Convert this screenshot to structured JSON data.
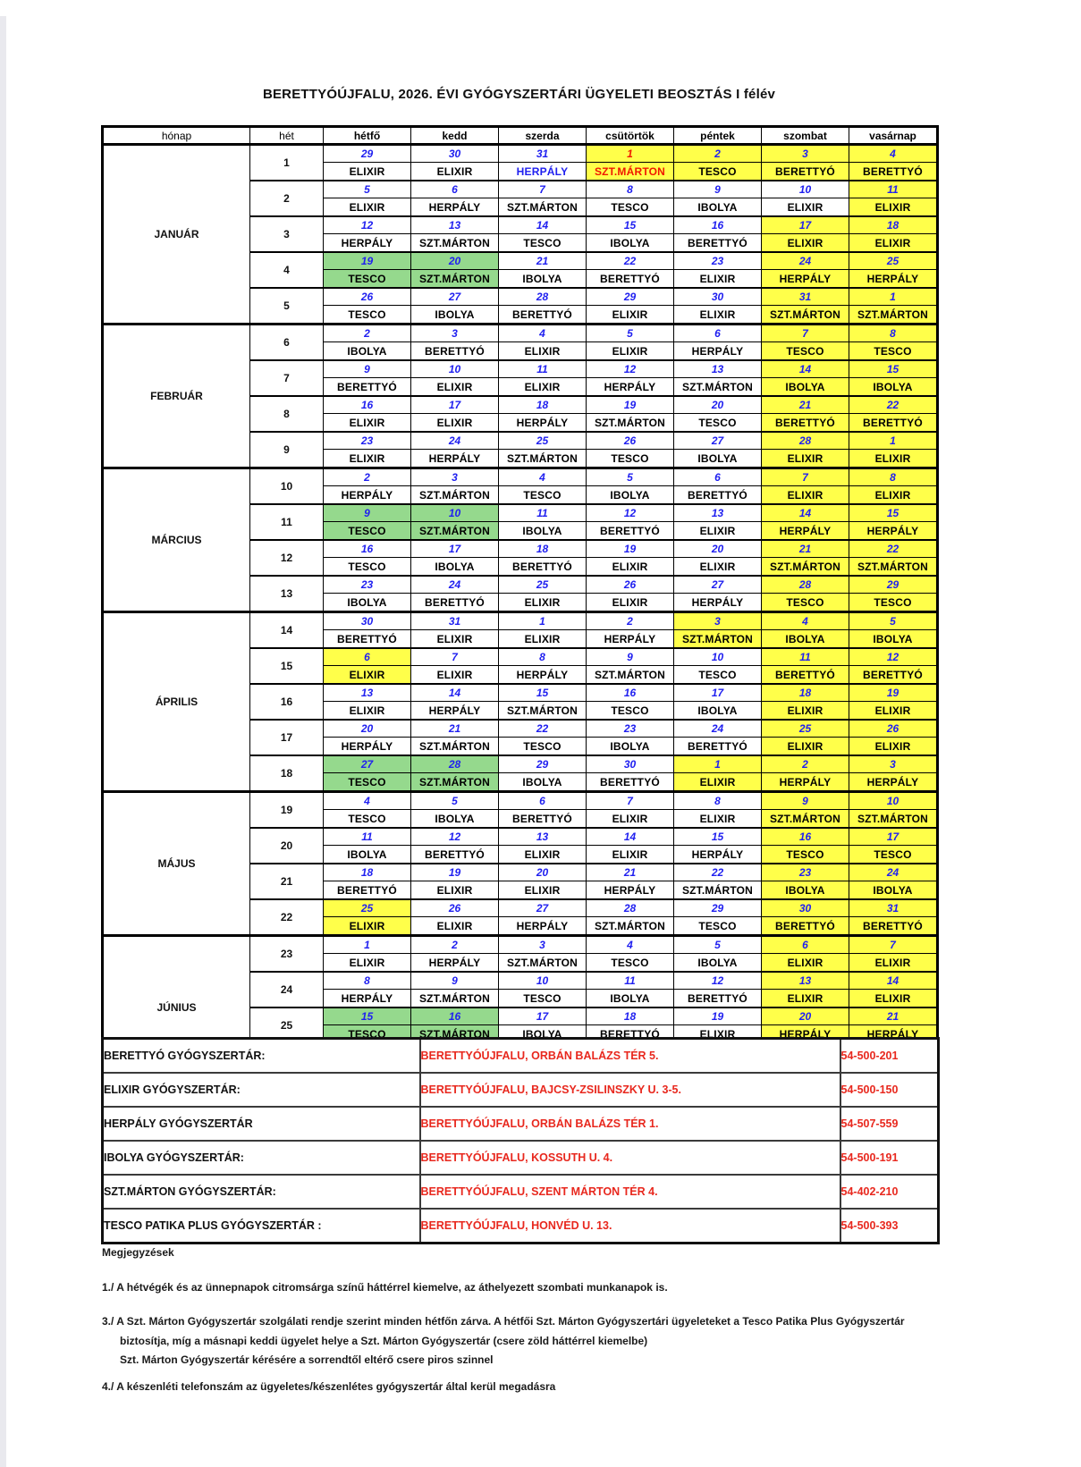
{
  "title": "BERETTYÓÚJFALU, 2026. ÉVI GYÓGYSZERTÁRI ÜGYELETI BEOSZTÁS I félév",
  "colors": {
    "weekend_holiday_bg": "#ffff4a",
    "swap_bg": "#95d98d",
    "date_text": "#2020f0",
    "swap_text_red": "#f01800",
    "address_text": "#e8281e"
  },
  "table": {
    "headers": [
      "hónap",
      "hét",
      "hétfő",
      "kedd",
      "szerda",
      "csütörtök",
      "péntek",
      "szombat",
      "vasárnap"
    ],
    "months": [
      {
        "name": "JANUÁR",
        "weeks": [
          {
            "n": "1",
            "d": [
              "29",
              "30",
              "31",
              "1",
              "2",
              "3",
              "4"
            ],
            "p": [
              "ELIXIR",
              "ELIXIR",
              "HERPÁLY",
              "SZT.MÁRTON",
              "TESCO",
              "BERETTYÓ",
              "BERETTYÓ"
            ],
            "bg": [
              "n",
              "n",
              "n",
              "y",
              "y",
              "y",
              "y"
            ],
            "dc": [
              "",
              "",
              "",
              "r",
              "",
              "",
              ""
            ],
            "pc": [
              "",
              "",
              "b",
              "r",
              "",
              "",
              ""
            ]
          },
          {
            "n": "2",
            "d": [
              "5",
              "6",
              "7",
              "8",
              "9",
              "10",
              "11"
            ],
            "p": [
              "ELIXIR",
              "HERPÁLY",
              "SZT.MÁRTON",
              "TESCO",
              "IBOLYA",
              "ELIXIR",
              "ELIXIR"
            ],
            "bg": [
              "n",
              "n",
              "n",
              "n",
              "n",
              "n",
              "y"
            ]
          },
          {
            "n": "3",
            "d": [
              "12",
              "13",
              "14",
              "15",
              "16",
              "17",
              "18"
            ],
            "p": [
              "HERPÁLY",
              "SZT.MÁRTON",
              "TESCO",
              "IBOLYA",
              "BERETTYÓ",
              "ELIXIR",
              "ELIXIR"
            ],
            "bg": [
              "n",
              "n",
              "n",
              "n",
              "n",
              "y",
              "y"
            ]
          },
          {
            "n": "4",
            "d": [
              "19",
              "20",
              "21",
              "22",
              "23",
              "24",
              "25"
            ],
            "p": [
              "TESCO",
              "SZT.MÁRTON",
              "IBOLYA",
              "BERETTYÓ",
              "ELIXIR",
              "HERPÁLY",
              "HERPÁLY"
            ],
            "bg": [
              "g",
              "g",
              "n",
              "n",
              "n",
              "y",
              "y"
            ]
          },
          {
            "n": "5",
            "d": [
              "26",
              "27",
              "28",
              "29",
              "30",
              "31",
              "1"
            ],
            "p": [
              "TESCO",
              "IBOLYA",
              "BERETTYÓ",
              "ELIXIR",
              "ELIXIR",
              "SZT.MÁRTON",
              "SZT.MÁRTON"
            ],
            "bg": [
              "n",
              "n",
              "n",
              "n",
              "n",
              "y",
              "y"
            ]
          }
        ]
      },
      {
        "name": "FEBRUÁR",
        "weeks": [
          {
            "n": "6",
            "d": [
              "2",
              "3",
              "4",
              "5",
              "6",
              "7",
              "8"
            ],
            "p": [
              "IBOLYA",
              "BERETTYÓ",
              "ELIXIR",
              "ELIXIR",
              "HERPÁLY",
              "TESCO",
              "TESCO"
            ],
            "bg": [
              "n",
              "n",
              "n",
              "n",
              "n",
              "y",
              "y"
            ]
          },
          {
            "n": "7",
            "d": [
              "9",
              "10",
              "11",
              "12",
              "13",
              "14",
              "15"
            ],
            "p": [
              "BERETTYÓ",
              "ELIXIR",
              "ELIXIR",
              "HERPÁLY",
              "SZT.MÁRTON",
              "IBOLYA",
              "IBOLYA"
            ],
            "bg": [
              "n",
              "n",
              "n",
              "n",
              "n",
              "y",
              "y"
            ]
          },
          {
            "n": "8",
            "d": [
              "16",
              "17",
              "18",
              "19",
              "20",
              "21",
              "22"
            ],
            "p": [
              "ELIXIR",
              "ELIXIR",
              "HERPÁLY",
              "SZT.MÁRTON",
              "TESCO",
              "BERETTYÓ",
              "BERETTYÓ"
            ],
            "bg": [
              "n",
              "n",
              "n",
              "n",
              "n",
              "y",
              "y"
            ]
          },
          {
            "n": "9",
            "d": [
              "23",
              "24",
              "25",
              "26",
              "27",
              "28",
              "1"
            ],
            "p": [
              "ELIXIR",
              "HERPÁLY",
              "SZT.MÁRTON",
              "TESCO",
              "IBOLYA",
              "ELIXIR",
              "ELIXIR"
            ],
            "bg": [
              "n",
              "n",
              "n",
              "n",
              "n",
              "y",
              "y"
            ]
          }
        ]
      },
      {
        "name": "MÁRCIUS",
        "weeks": [
          {
            "n": "10",
            "d": [
              "2",
              "3",
              "4",
              "5",
              "6",
              "7",
              "8"
            ],
            "p": [
              "HERPÁLY",
              "SZT.MÁRTON",
              "TESCO",
              "IBOLYA",
              "BERETTYÓ",
              "ELIXIR",
              "ELIXIR"
            ],
            "bg": [
              "n",
              "n",
              "n",
              "n",
              "n",
              "y",
              "y"
            ]
          },
          {
            "n": "11",
            "d": [
              "9",
              "10",
              "11",
              "12",
              "13",
              "14",
              "15"
            ],
            "p": [
              "TESCO",
              "SZT.MÁRTON",
              "IBOLYA",
              "BERETTYÓ",
              "ELIXIR",
              "HERPÁLY",
              "HERPÁLY"
            ],
            "bg": [
              "g",
              "g",
              "n",
              "n",
              "n",
              "y",
              "y"
            ]
          },
          {
            "n": "12",
            "d": [
              "16",
              "17",
              "18",
              "19",
              "20",
              "21",
              "22"
            ],
            "p": [
              "TESCO",
              "IBOLYA",
              "BERETTYÓ",
              "ELIXIR",
              "ELIXIR",
              "SZT.MÁRTON",
              "SZT.MÁRTON"
            ],
            "bg": [
              "n",
              "n",
              "n",
              "n",
              "n",
              "y",
              "y"
            ]
          },
          {
            "n": "13",
            "d": [
              "23",
              "24",
              "25",
              "26",
              "27",
              "28",
              "29"
            ],
            "p": [
              "IBOLYA",
              "BERETTYÓ",
              "ELIXIR",
              "ELIXIR",
              "HERPÁLY",
              "TESCO",
              "TESCO"
            ],
            "bg": [
              "n",
              "n",
              "n",
              "n",
              "n",
              "y",
              "y"
            ]
          }
        ]
      },
      {
        "name": "ÁPRILIS",
        "weeks": [
          {
            "n": "14",
            "d": [
              "30",
              "31",
              "1",
              "2",
              "3",
              "4",
              "5"
            ],
            "p": [
              "BERETTYÓ",
              "ELIXIR",
              "ELIXIR",
              "HERPÁLY",
              "SZT.MÁRTON",
              "IBOLYA",
              "IBOLYA"
            ],
            "bg": [
              "n",
              "n",
              "n",
              "n",
              "y",
              "y",
              "y"
            ]
          },
          {
            "n": "15",
            "d": [
              "6",
              "7",
              "8",
              "9",
              "10",
              "11",
              "12"
            ],
            "p": [
              "ELIXIR",
              "ELIXIR",
              "HERPÁLY",
              "SZT.MÁRTON",
              "TESCO",
              "BERETTYÓ",
              "BERETTYÓ"
            ],
            "bg": [
              "y",
              "n",
              "n",
              "n",
              "n",
              "y",
              "y"
            ]
          },
          {
            "n": "16",
            "d": [
              "13",
              "14",
              "15",
              "16",
              "17",
              "18",
              "19"
            ],
            "p": [
              "ELIXIR",
              "HERPÁLY",
              "SZT.MÁRTON",
              "TESCO",
              "IBOLYA",
              "ELIXIR",
              "ELIXIR"
            ],
            "bg": [
              "n",
              "n",
              "n",
              "n",
              "n",
              "y",
              "y"
            ]
          },
          {
            "n": "17",
            "d": [
              "20",
              "21",
              "22",
              "23",
              "24",
              "25",
              "26"
            ],
            "p": [
              "HERPÁLY",
              "SZT.MÁRTON",
              "TESCO",
              "IBOLYA",
              "BERETTYÓ",
              "ELIXIR",
              "ELIXIR"
            ],
            "bg": [
              "n",
              "n",
              "n",
              "n",
              "n",
              "y",
              "y"
            ]
          },
          {
            "n": "18",
            "d": [
              "27",
              "28",
              "29",
              "30",
              "1",
              "2",
              "3"
            ],
            "p": [
              "TESCO",
              "SZT.MÁRTON",
              "IBOLYA",
              "BERETTYÓ",
              "ELIXIR",
              "HERPÁLY",
              "HERPÁLY"
            ],
            "bg": [
              "g",
              "g",
              "n",
              "n",
              "y",
              "y",
              "y"
            ]
          }
        ]
      },
      {
        "name": "MÁJUS",
        "weeks": [
          {
            "n": "19",
            "d": [
              "4",
              "5",
              "6",
              "7",
              "8",
              "9",
              "10"
            ],
            "p": [
              "TESCO",
              "IBOLYA",
              "BERETTYÓ",
              "ELIXIR",
              "ELIXIR",
              "SZT.MÁRTON",
              "SZT.MÁRTON"
            ],
            "bg": [
              "n",
              "n",
              "n",
              "n",
              "n",
              "y",
              "y"
            ]
          },
          {
            "n": "20",
            "d": [
              "11",
              "12",
              "13",
              "14",
              "15",
              "16",
              "17"
            ],
            "p": [
              "IBOLYA",
              "BERETTYÓ",
              "ELIXIR",
              "ELIXIR",
              "HERPÁLY",
              "TESCO",
              "TESCO"
            ],
            "bg": [
              "n",
              "n",
              "n",
              "n",
              "n",
              "y",
              "y"
            ]
          },
          {
            "n": "21",
            "d": [
              "18",
              "19",
              "20",
              "21",
              "22",
              "23",
              "24"
            ],
            "p": [
              "BERETTYÓ",
              "ELIXIR",
              "ELIXIR",
              "HERPÁLY",
              "SZT.MÁRTON",
              "IBOLYA",
              "IBOLYA"
            ],
            "bg": [
              "n",
              "n",
              "n",
              "n",
              "n",
              "y",
              "y"
            ]
          },
          {
            "n": "22",
            "d": [
              "25",
              "26",
              "27",
              "28",
              "29",
              "30",
              "31"
            ],
            "p": [
              "ELIXIR",
              "ELIXIR",
              "HERPÁLY",
              "SZT.MÁRTON",
              "TESCO",
              "BERETTYÓ",
              "BERETTYÓ"
            ],
            "bg": [
              "y",
              "n",
              "n",
              "n",
              "n",
              "y",
              "y"
            ]
          }
        ]
      },
      {
        "name": "JÚNIUS",
        "weeks": [
          {
            "n": "23",
            "d": [
              "1",
              "2",
              "3",
              "4",
              "5",
              "6",
              "7"
            ],
            "p": [
              "ELIXIR",
              "HERPÁLY",
              "SZT.MÁRTON",
              "TESCO",
              "IBOLYA",
              "ELIXIR",
              "ELIXIR"
            ],
            "bg": [
              "n",
              "n",
              "n",
              "n",
              "n",
              "y",
              "y"
            ]
          },
          {
            "n": "24",
            "d": [
              "8",
              "9",
              "10",
              "11",
              "12",
              "13",
              "14"
            ],
            "p": [
              "HERPÁLY",
              "SZT.MÁRTON",
              "TESCO",
              "IBOLYA",
              "BERETTYÓ",
              "ELIXIR",
              "ELIXIR"
            ],
            "bg": [
              "n",
              "n",
              "n",
              "n",
              "n",
              "y",
              "y"
            ]
          },
          {
            "n": "25",
            "d": [
              "15",
              "16",
              "17",
              "18",
              "19",
              "20",
              "21"
            ],
            "p": [
              "TESCO",
              "SZT.MÁRTON",
              "IBOLYA",
              "BERETTYÓ",
              "ELIXIR",
              "HERPÁLY",
              "HERPÁLY"
            ],
            "bg": [
              "g",
              "g",
              "n",
              "n",
              "n",
              "y",
              "y"
            ]
          },
          {
            "n": "26",
            "d": [
              "22",
              "23",
              "24",
              "25",
              "26",
              "27",
              "28"
            ],
            "p": [
              "TESCO",
              "IBOLYA",
              "BERETTYÓ",
              "ELIXIR",
              "ELIXIR",
              "SZT.MÁRTON",
              "SZT.MÁRTON"
            ],
            "bg": [
              "n",
              "n",
              "n",
              "n",
              "n",
              "y",
              "y"
            ]
          }
        ]
      }
    ]
  },
  "directory": [
    {
      "name": "BERETTYÓ GYÓGYSZERTÁR:",
      "address": "BERETTYÓÚJFALU, ORBÁN BALÁZS TÉR 5.",
      "phone": "54-500-201"
    },
    {
      "name": "ELIXIR GYÓGYSZERTÁR:",
      "address": "BERETTYÓÚJFALU, BAJCSY-ZSILINSZKY U. 3-5.",
      "phone": "54-500-150"
    },
    {
      "name": "HERPÁLY GYÓGYSZERTÁR",
      "address": "BERETTYÓÚJFALU, ORBÁN BALÁZS TÉR 1.",
      "phone": "54-507-559"
    },
    {
      "name": "IBOLYA GYÓGYSZERTÁR:",
      "address": "BERETTYÓÚJFALU, KOSSUTH U. 4.",
      "phone": "54-500-191"
    },
    {
      "name": "SZT.MÁRTON GYÓGYSZERTÁR:",
      "address": "BERETTYÓÚJFALU, SZENT MÁRTON TÉR 4.",
      "phone": "54-402-210"
    },
    {
      "name": "TESCO PATIKA PLUS  GYÓGYSZERTÁR :",
      "address": "BERETTYÓÚJFALU, HONVÉD U. 13.",
      "phone": "54-500-393"
    }
  ],
  "notes": {
    "heading": "Megjegyzések",
    "lines": [
      "1./  A hétvégék és az ünnepnapok citromsárga színű háttérrel kiemelve, az áthelyezett szombati munkanapok is.",
      "3./   A Szt. Márton Gyógyszertár szolgálati rendje szerint minden hétfőn zárva. A hétfői Szt. Márton Gyógyszertári ügyeleteket a Tesco Patika Plus Gyógyszertár",
      "biztosítja, míg a másnapi keddi ügyelet helye a Szt. Márton Gyógyszertár (csere zöld háttérrel kiemelbe)",
      "Szt. Márton Gyógyszertár kérésére a sorrendtől eltérő csere piros szinnel",
      "4./  A készenléti telefonszám  az ügyeletes/készenlétes gyógyszertár által kerül megadásra"
    ]
  }
}
